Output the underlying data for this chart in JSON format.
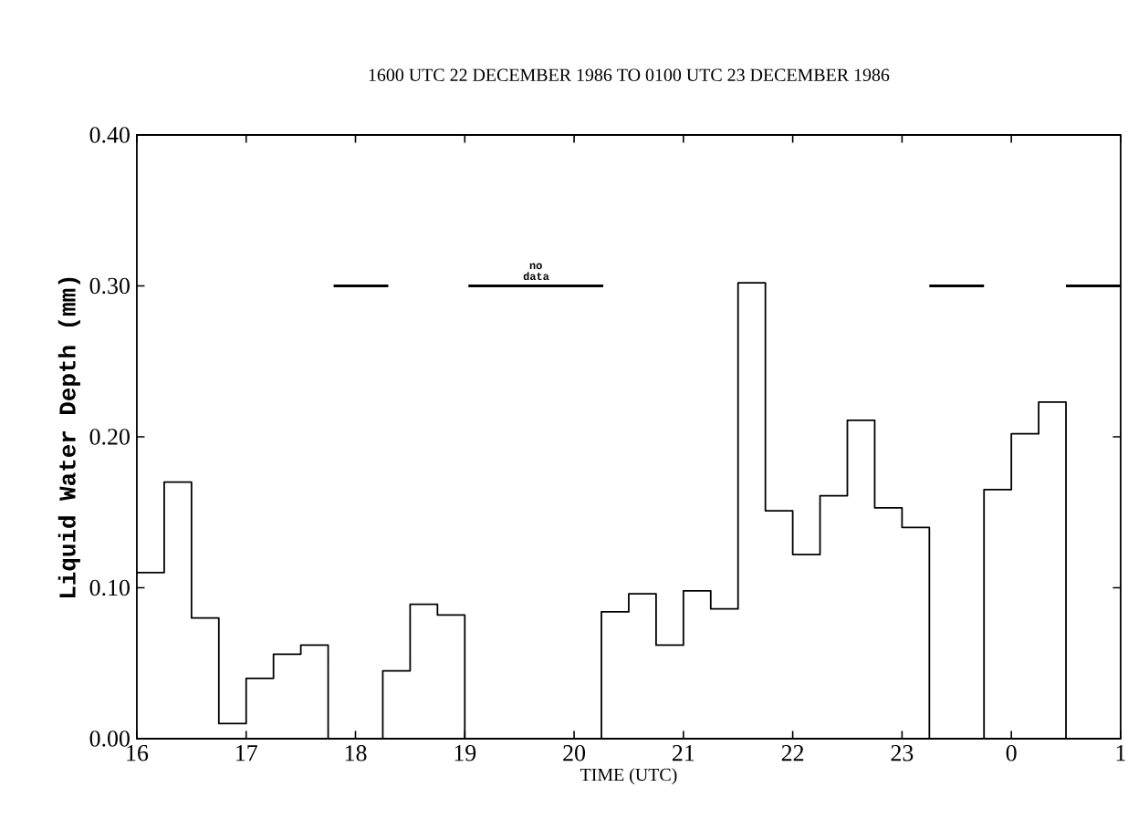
{
  "chart_data": {
    "type": "step",
    "title": "1600 UTC 22 DECEMBER 1986 TO 0100 UTC 23 DECEMBER 1986",
    "xlabel": "TIME (UTC)",
    "ylabel": "Liquid Water Depth (mm)",
    "xlim": [
      "1986-12-22T16:00",
      "1986-12-23T01:00"
    ],
    "ylim": [
      0,
      0.4
    ],
    "xticks": [
      {
        "value": "1986-12-22T16:00",
        "label": "16"
      },
      {
        "value": "1986-12-22T17:00",
        "label": "17"
      },
      {
        "value": "1986-12-22T18:00",
        "label": "18"
      },
      {
        "value": "1986-12-22T19:00",
        "label": "19"
      },
      {
        "value": "1986-12-22T20:00",
        "label": "20"
      },
      {
        "value": "1986-12-22T21:00",
        "label": "21"
      },
      {
        "value": "1986-12-22T22:00",
        "label": "22"
      },
      {
        "value": "1986-12-22T23:00",
        "label": "23"
      },
      {
        "value": "1986-12-23T00:00",
        "label": "0"
      },
      {
        "value": "1986-12-23T01:00",
        "label": "1"
      }
    ],
    "yticks": [
      {
        "value": 0,
        "label": "0.00"
      },
      {
        "value": 0.1,
        "label": "0.10"
      },
      {
        "value": 0.2,
        "label": "0.20"
      },
      {
        "value": 0.3,
        "label": "0.30"
      },
      {
        "value": 0.4,
        "label": "0.40"
      }
    ],
    "annotations": [
      {
        "text": "no data",
        "x": "1986-12-22T19:39",
        "y": 0.3
      }
    ],
    "series": [
      {
        "color": "#000000",
        "x": [
          "1986-12-22T16:00",
          "1986-12-22T16:15",
          "1986-12-22T16:30",
          "1986-12-22T16:45",
          "1986-12-22T17:00",
          "1986-12-22T17:15",
          "1986-12-22T17:30",
          "1986-12-22T17:45",
          "1986-12-22T18:00",
          "1986-12-22T18:15",
          "1986-12-22T18:30",
          "1986-12-22T18:45",
          "1986-12-22T19:00",
          "1986-12-22T19:15",
          "1986-12-22T19:30",
          "1986-12-22T19:45",
          "1986-12-22T20:00",
          "1986-12-22T20:15",
          "1986-12-22T20:30",
          "1986-12-22T20:45",
          "1986-12-22T21:00",
          "1986-12-22T21:15",
          "1986-12-22T21:30",
          "1986-12-22T21:45",
          "1986-12-22T22:00",
          "1986-12-22T22:15",
          "1986-12-22T22:30",
          "1986-12-22T22:45",
          "1986-12-22T23:00",
          "1986-12-22T23:15",
          "1986-12-22T23:30",
          "1986-12-22T23:45",
          "1986-12-23T00:00",
          "1986-12-23T00:15",
          "1986-12-23T00:30",
          "1986-12-23T00:45"
        ],
        "values": [
          0.11,
          0.17,
          0.08,
          0.01,
          0.04,
          0.056,
          0.062,
          0,
          0,
          0.045,
          0.089,
          0.082,
          0,
          0,
          0,
          0,
          0,
          0.084,
          0.096,
          0.062,
          0.098,
          0.086,
          0.302,
          0.151,
          0.122,
          0.161,
          0.211,
          0.153,
          0.14,
          0,
          0,
          0.165,
          0.202,
          0.223,
          0,
          0
        ]
      },
      {
        "type": "line",
        "color": "#000000",
        "x": [
          "1986-12-22T17:48",
          "1986-12-22T18:18"
        ],
        "values": [
          0.3,
          0.3
        ]
      },
      {
        "type": "line",
        "color": "#000000",
        "x": [
          "1986-12-22T19:02",
          "1986-12-22T20:16"
        ],
        "values": [
          0.3,
          0.3
        ]
      },
      {
        "type": "line",
        "color": "#000000",
        "x": [
          "1986-12-22T23:15",
          "1986-12-22T23:45"
        ],
        "values": [
          0.3,
          0.3
        ]
      },
      {
        "type": "line",
        "color": "#000000",
        "x": [
          "1986-12-23T00:30",
          "1986-12-23T01:00"
        ],
        "values": [
          0.3,
          0.3
        ]
      }
    ]
  }
}
